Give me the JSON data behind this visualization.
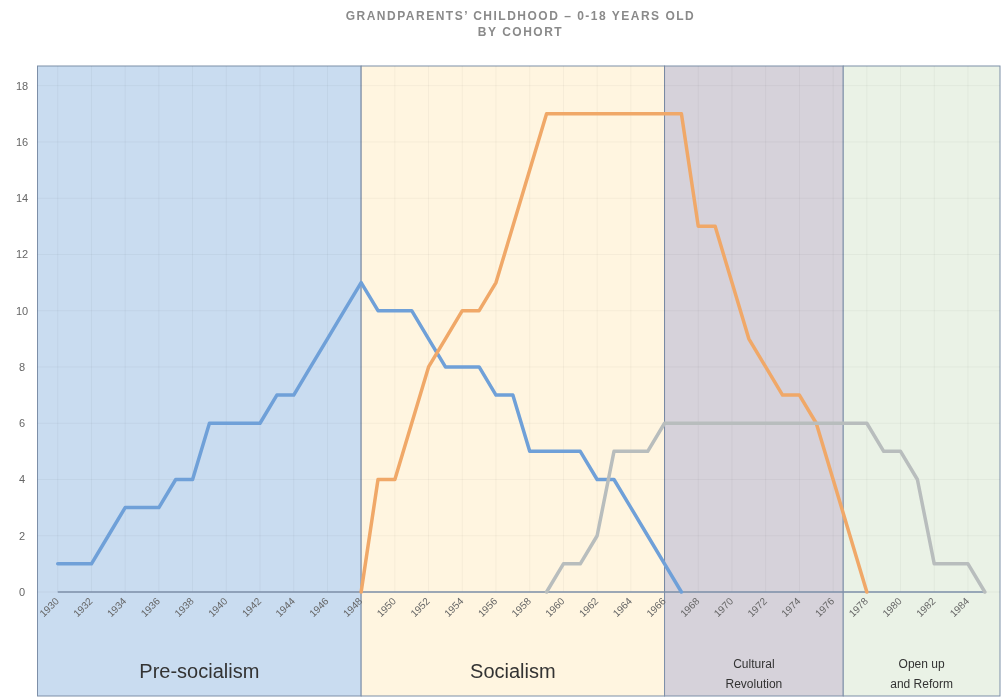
{
  "chart_data": {
    "type": "line",
    "title": "GRANDPARENTS’ CHILDHOOD – 0-18 YEARS OLD",
    "subtitle": "BY COHORT",
    "series": [
      {
        "color": "#6fa0d8",
        "x": [
          1930,
          1931,
          1932,
          1933,
          1934,
          1935,
          1936,
          1937,
          1938,
          1939,
          1940,
          1941,
          1942,
          1943,
          1944,
          1945,
          1946,
          1947,
          1948,
          1949,
          1950,
          1951,
          1952,
          1953,
          1954,
          1955,
          1956,
          1957,
          1958,
          1959,
          1960,
          1961,
          1962,
          1963,
          1964,
          1965,
          1966,
          1967
        ],
        "values": [
          1,
          1,
          1,
          2,
          3,
          3,
          3,
          4,
          4,
          6,
          6,
          6,
          6,
          7,
          7,
          8,
          9,
          10,
          11,
          10,
          10,
          10,
          9,
          8,
          8,
          8,
          7,
          7,
          5,
          5,
          5,
          5,
          4,
          4,
          3,
          2,
          1,
          0
        ]
      },
      {
        "color": "#f0a868",
        "x": [
          1948,
          1949,
          1950,
          1951,
          1952,
          1953,
          1954,
          1955,
          1956,
          1957,
          1958,
          1959,
          1960,
          1961,
          1962,
          1963,
          1964,
          1965,
          1966,
          1967,
          1968,
          1969,
          1970,
          1971,
          1972,
          1973,
          1974,
          1975,
          1976,
          1977,
          1978
        ],
        "values": [
          0,
          4,
          4,
          6,
          8,
          9,
          10,
          10,
          11,
          13,
          15,
          17,
          17,
          17,
          17,
          17,
          17,
          17,
          17,
          17,
          13,
          13,
          11,
          9,
          8,
          7,
          7,
          6,
          4,
          2,
          0
        ]
      },
      {
        "color": "#b8bdbd",
        "x": [
          1959,
          1960,
          1961,
          1962,
          1963,
          1964,
          1965,
          1966,
          1967,
          1968,
          1969,
          1970,
          1971,
          1972,
          1973,
          1974,
          1975,
          1976,
          1977,
          1978,
          1979,
          1980,
          1981,
          1982,
          1983,
          1984,
          1985
        ],
        "values": [
          0,
          1,
          1,
          2,
          5,
          5,
          5,
          6,
          6,
          6,
          6,
          6,
          6,
          6,
          6,
          6,
          6,
          6,
          6,
          6,
          5,
          5,
          4,
          1,
          1,
          1,
          0
        ]
      }
    ],
    "xlim": [
      1928.8,
      1985.9
    ],
    "xticks": [
      1930,
      1932,
      1934,
      1936,
      1938,
      1940,
      1942,
      1944,
      1946,
      1948,
      1950,
      1952,
      1954,
      1956,
      1958,
      1960,
      1962,
      1964,
      1966,
      1968,
      1970,
      1972,
      1974,
      1976,
      1978,
      1980,
      1982,
      1984
    ],
    "ylim": [
      0,
      18.7
    ],
    "yticks": [
      0,
      2,
      4,
      6,
      8,
      10,
      12,
      14,
      16,
      18
    ],
    "bands": [
      {
        "axis": "x",
        "from": 1928.8,
        "to": 1948,
        "label": "Pre-socialism",
        "color": "#c9dcf0"
      },
      {
        "axis": "x",
        "from": 1948,
        "to": 1966,
        "label": "Socialism",
        "color": "#fff5e0"
      },
      {
        "axis": "x",
        "from": 1966,
        "to": 1976.6,
        "label": "Cultural Revolution",
        "color": "#d6d2da"
      },
      {
        "axis": "x",
        "from": 1976.6,
        "to": 1985.9,
        "label": "Open up and Reform",
        "color": "#eaf2e6"
      }
    ],
    "grid": true,
    "marker": "none",
    "line_style": "solid"
  }
}
